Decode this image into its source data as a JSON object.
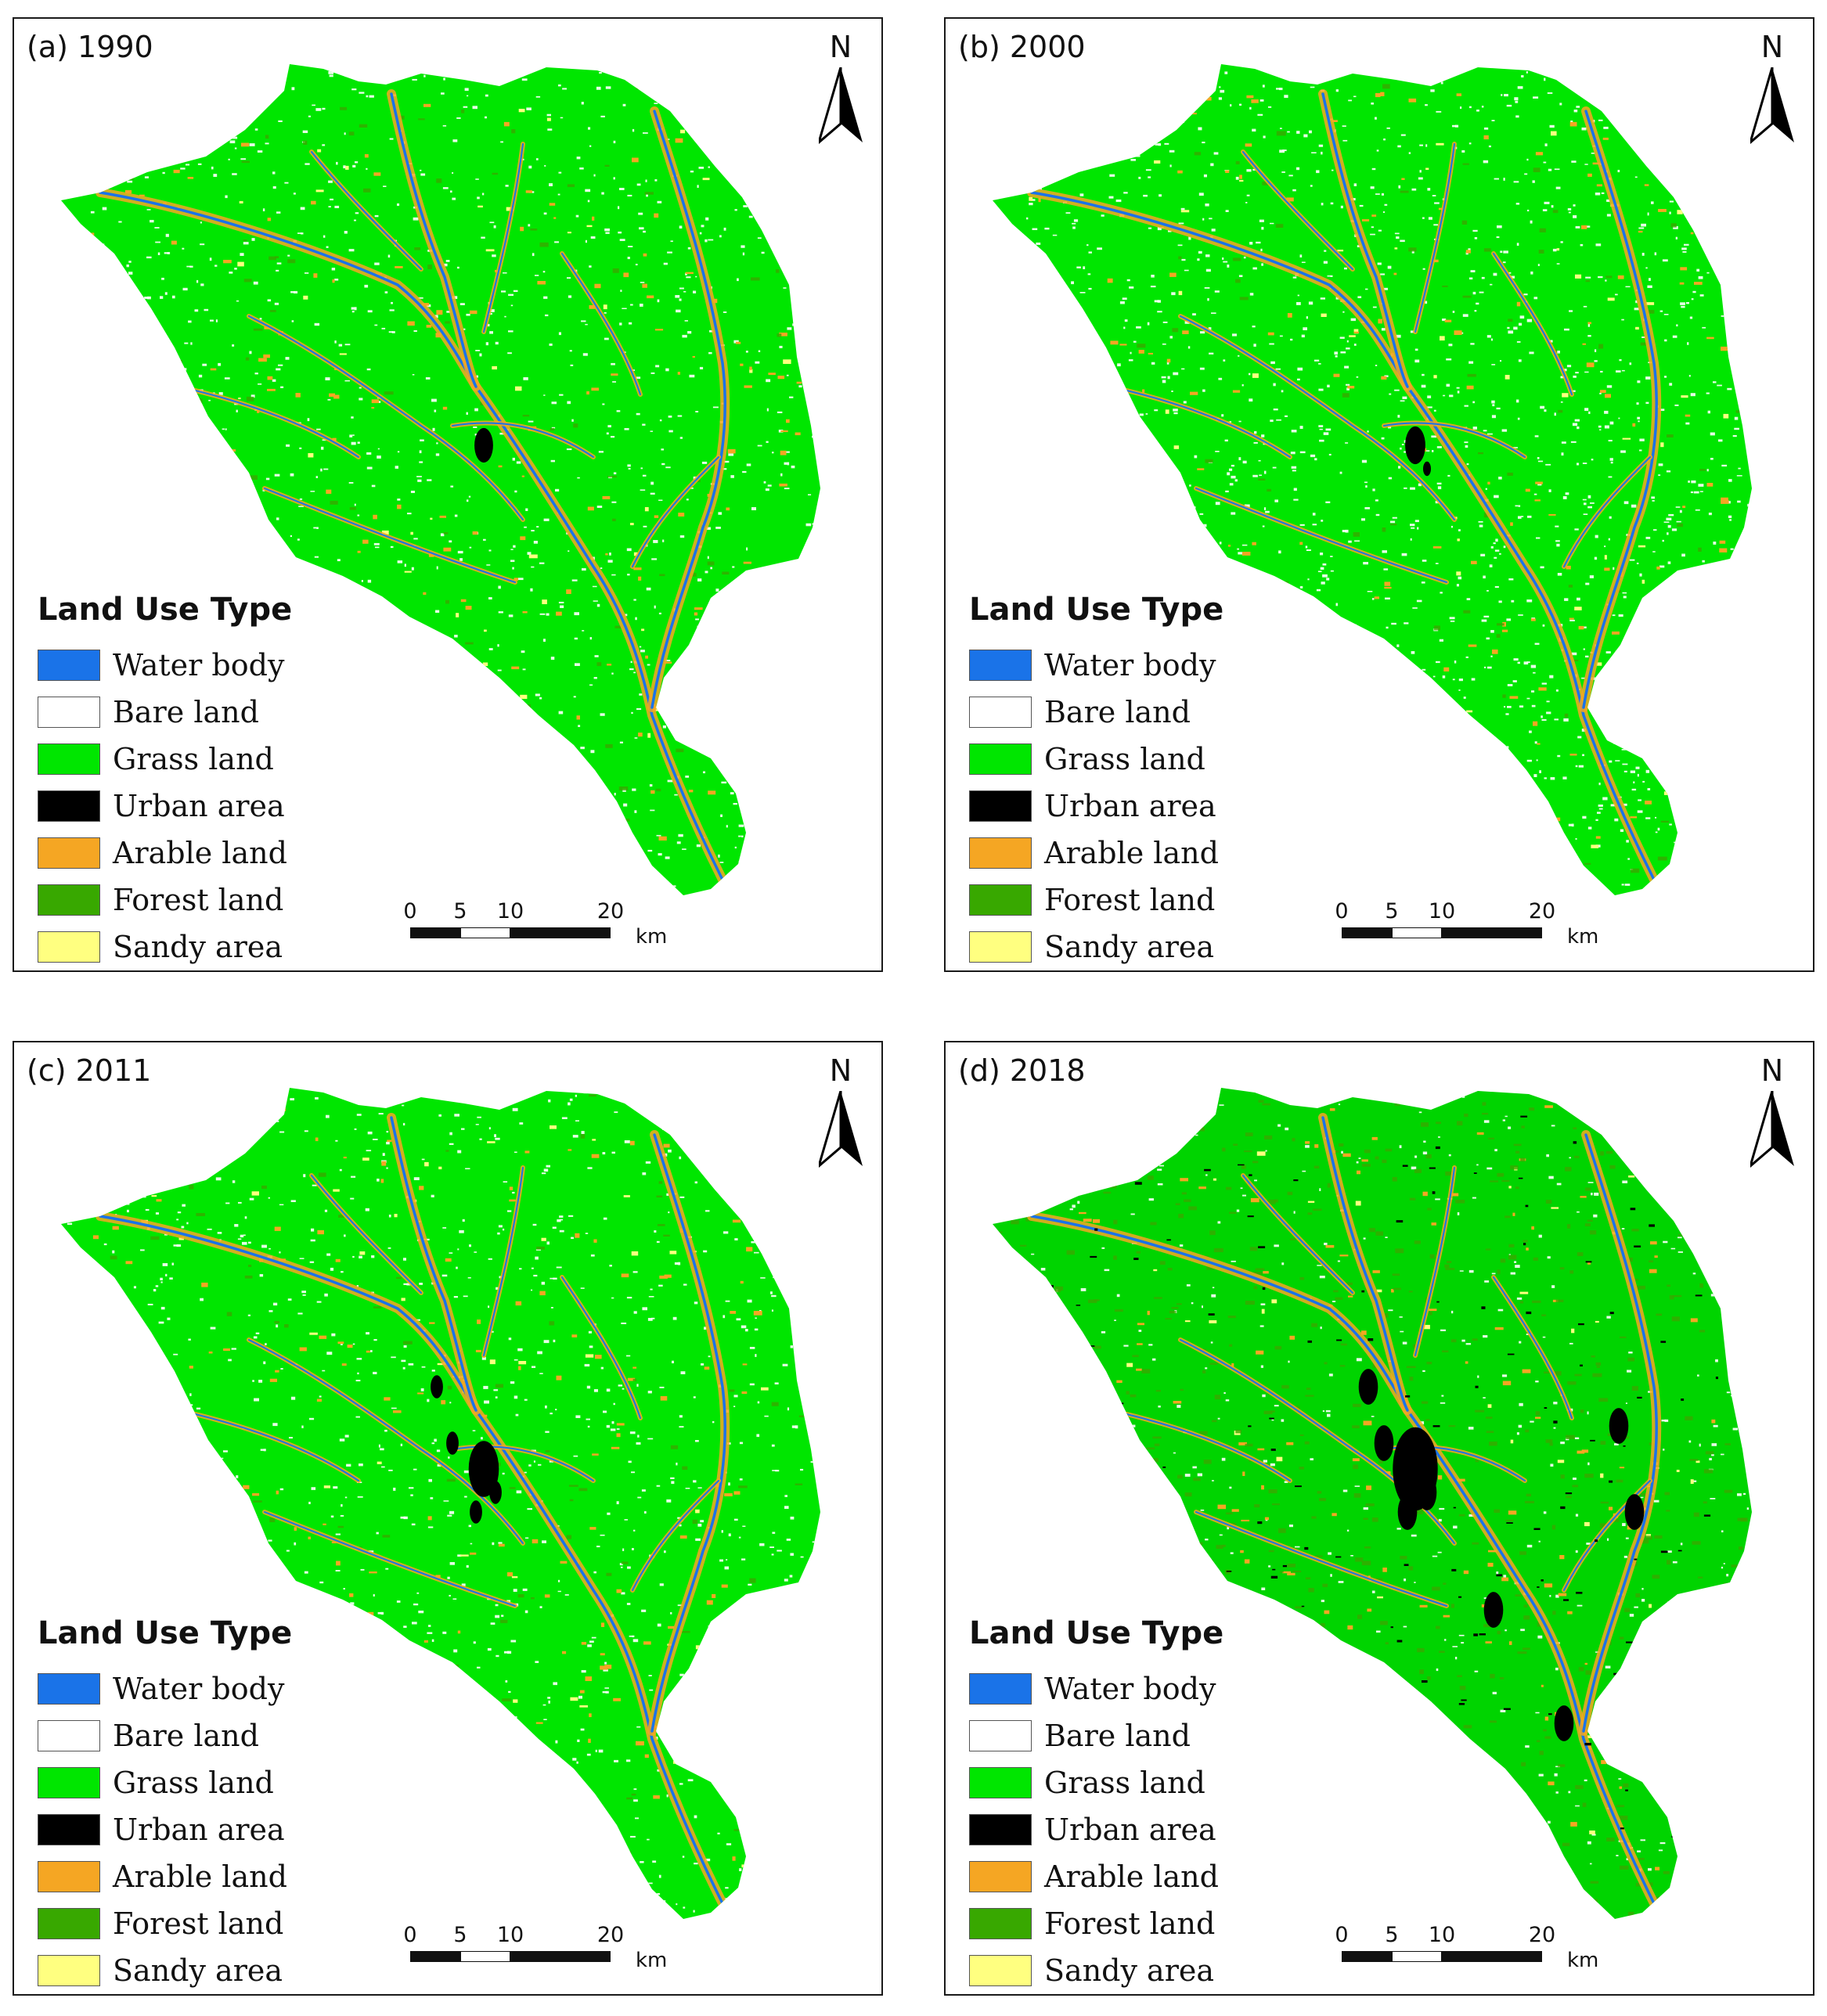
{
  "legend": {
    "title": "Land Use Type",
    "items": [
      {
        "label": "Water body",
        "color": "#1a73e8"
      },
      {
        "label": "Bare land",
        "color": "#ffffff"
      },
      {
        "label": "Grass land",
        "color": "#00e600"
      },
      {
        "label": "Urban area",
        "color": "#000000"
      },
      {
        "label": "Arable land",
        "color": "#f5a623"
      },
      {
        "label": "Forest land",
        "color": "#38a800"
      },
      {
        "label": "Sandy area",
        "color": "#ffff80"
      }
    ]
  },
  "north_label": "N",
  "scale": {
    "ticks": [
      "0",
      "5",
      "10",
      "20"
    ],
    "unit": "km"
  },
  "panels": [
    {
      "label": "(a) 1990",
      "bare_density": 0.55,
      "urban_level": 0.1
    },
    {
      "label": "(b) 2000",
      "bare_density": 0.75,
      "urban_level": 0.15
    },
    {
      "label": "(c) 2011",
      "bare_density": 0.5,
      "urban_level": 0.45
    },
    {
      "label": "(d) 2018",
      "bare_density": 0.25,
      "urban_level": 0.9
    }
  ]
}
